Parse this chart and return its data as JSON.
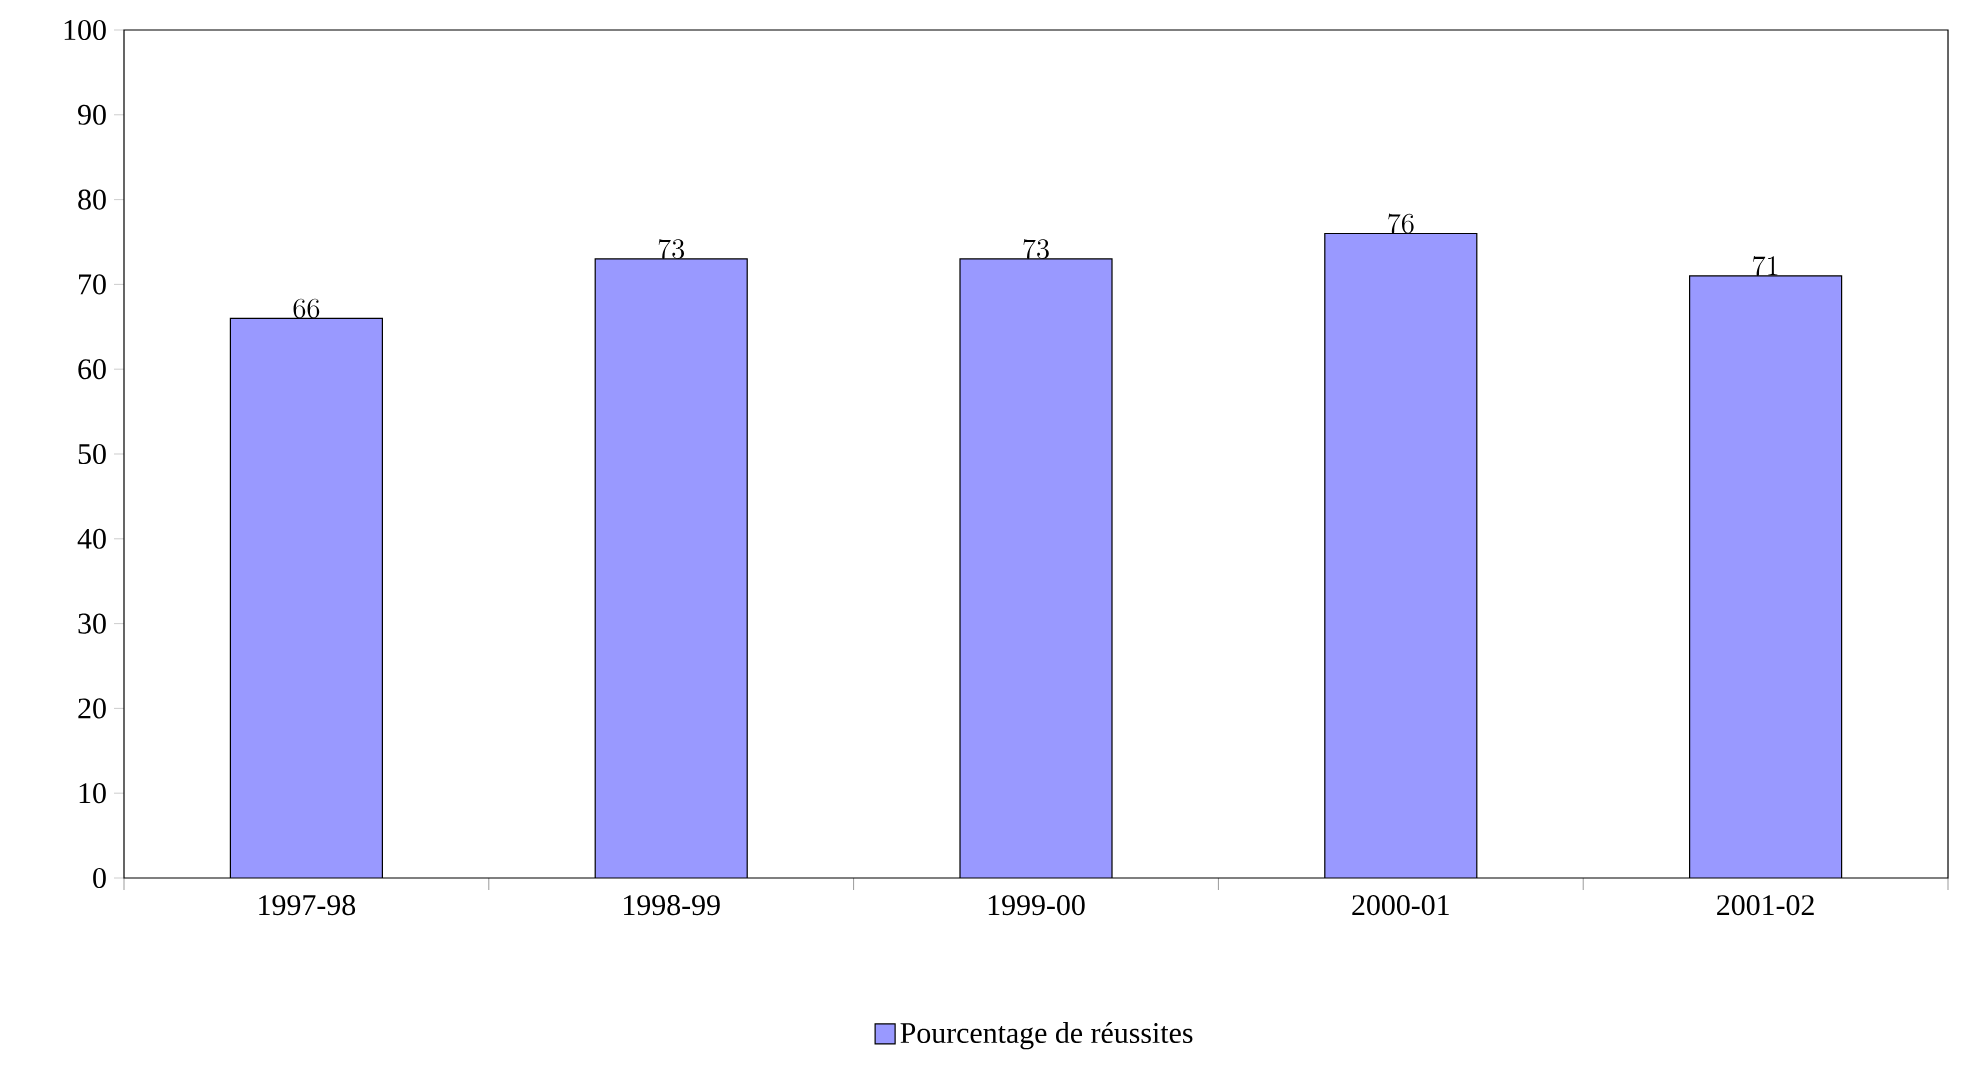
{
  "chart_data": {
    "type": "bar",
    "categories": [
      "1997-98",
      "1998-99",
      "1999-00",
      "2000-01",
      "2001-02"
    ],
    "series": [
      {
        "name": "Pourcentage de réussites",
        "color": "#9999ff",
        "values": [
          66,
          73,
          73,
          76,
          71
        ]
      }
    ],
    "ylim": [
      0,
      100
    ],
    "yticks": [
      0,
      10,
      20,
      30,
      40,
      50,
      60,
      70,
      80,
      90,
      100
    ],
    "data_labels": true,
    "legend": "bottom",
    "grid": false
  }
}
